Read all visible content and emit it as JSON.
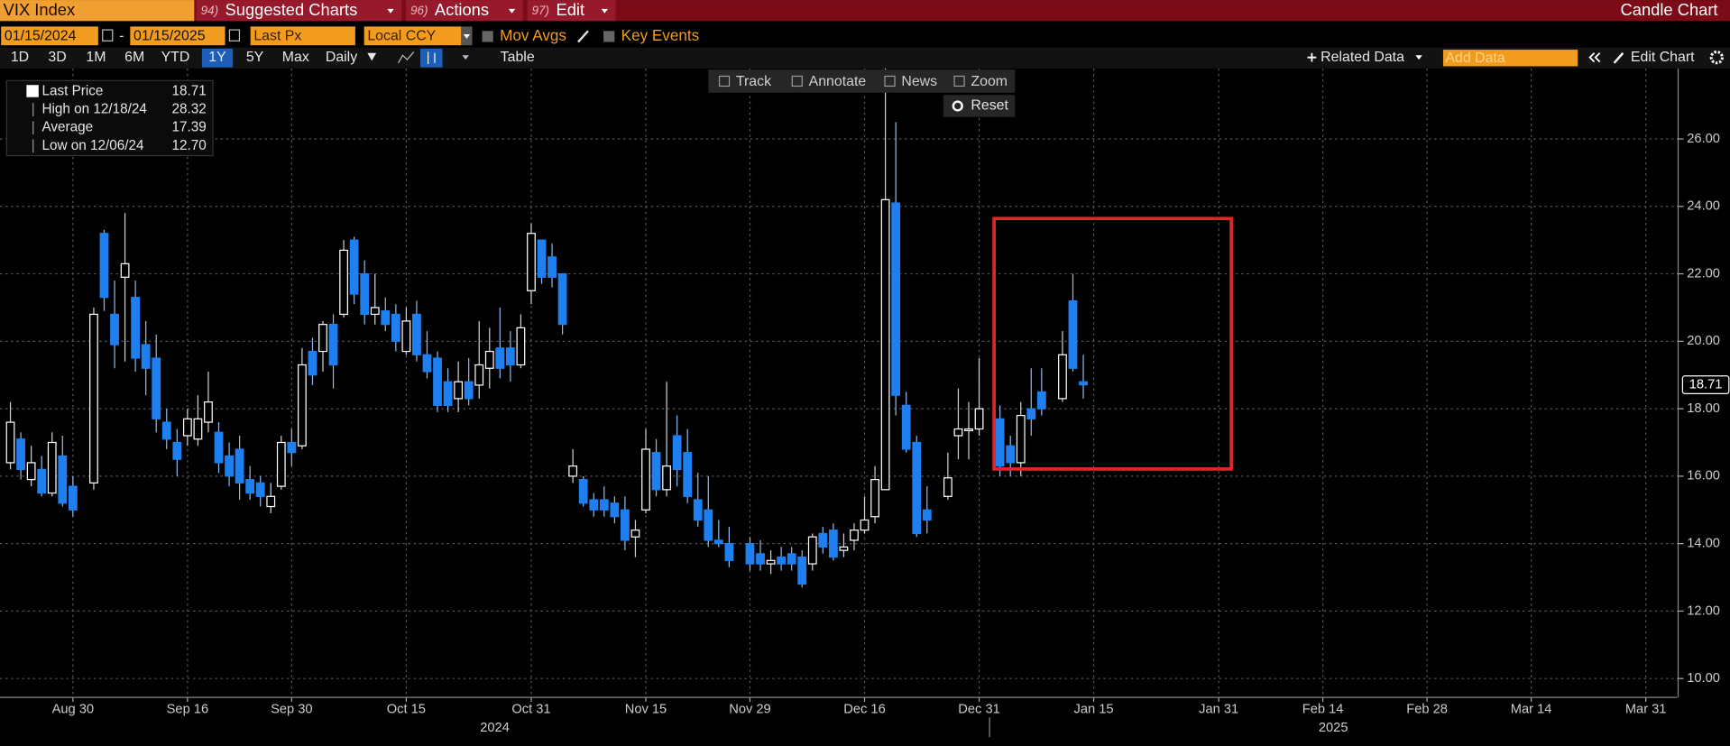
{
  "ui": {
    "security": "VIX Index",
    "menus": [
      {
        "num": "94)",
        "label": "Suggested Charts"
      },
      {
        "num": "96)",
        "label": "Actions"
      },
      {
        "num": "97)",
        "label": "Edit"
      }
    ],
    "chart_kind": "Candle Chart",
    "start_date": "01/15/2024",
    "date_sep": "-",
    "end_date": "01/15/2025",
    "price_field": "Last Px",
    "currency": "Local CCY",
    "mov_avgs": "Mov Avgs",
    "key_events": "Key Events",
    "periods": [
      "1D",
      "3D",
      "1M",
      "6M",
      "YTD",
      "1Y",
      "5Y",
      "Max"
    ],
    "active_period": 5,
    "frequency": "Daily",
    "table": "Table",
    "related_data": "Related Data",
    "add_data": "Add Data",
    "edit_chart": "Edit Chart",
    "tools": [
      "Track",
      "Annotate",
      "News",
      "Zoom"
    ],
    "reset": "Reset"
  },
  "chart_data": {
    "type": "candlestick",
    "legend_stats": [
      {
        "name": "Last Price",
        "value": 18.71
      },
      {
        "name": "High on 12/18/24",
        "value": 28.32
      },
      {
        "name": "Average",
        "value": 17.39
      },
      {
        "name": "Low on 12/06/24",
        "value": 12.7,
        "value_label": "12.70"
      }
    ],
    "up_color": "#ffffff",
    "down_color": "#1e80f0",
    "grid": true,
    "xlim": [
      "2024-08-21",
      "2025-04-03"
    ],
    "xticks": [
      {
        "value": "2024-08-30",
        "label": "Aug 30"
      },
      {
        "value": "2024-09-16",
        "label": "Sep 16"
      },
      {
        "value": "2024-09-30",
        "label": "Sep 30"
      },
      {
        "value": "2024-10-15",
        "label": "Oct 15"
      },
      {
        "value": "2024-10-31",
        "label": "Oct 31"
      },
      {
        "value": "2024-11-15",
        "label": "Nov 15"
      },
      {
        "value": "2024-11-29",
        "label": "Nov 29"
      },
      {
        "value": "2024-12-16",
        "label": "Dec 16"
      },
      {
        "value": "2024-12-31",
        "label": "Dec 31"
      },
      {
        "value": "2025-01-15",
        "label": "Jan 15"
      },
      {
        "value": "2025-01-31",
        "label": "Jan 31"
      },
      {
        "value": "2025-02-14",
        "label": "Feb 14"
      },
      {
        "value": "2025-02-28",
        "label": "Feb 28"
      },
      {
        "value": "2025-03-14",
        "label": "Mar 14"
      },
      {
        "value": "2025-03-31",
        "label": "Mar 31"
      }
    ],
    "x_years": [
      "2024",
      "2025"
    ],
    "ylim": [
      9.44,
      28.09
    ],
    "yticks": [
      {
        "value": 10,
        "label": "10.00"
      },
      {
        "value": 12,
        "label": "12.00"
      },
      {
        "value": 14,
        "label": "14.00"
      },
      {
        "value": 16,
        "label": "16.00"
      },
      {
        "value": 18,
        "label": "18.00"
      },
      {
        "value": 20,
        "label": "20.00"
      },
      {
        "value": 22,
        "label": "22.00"
      },
      {
        "value": 24,
        "label": "24.00"
      },
      {
        "value": 26,
        "label": "26.00"
      }
    ],
    "x": [
      "2024-08-22",
      "2024-08-23",
      "2024-08-26",
      "2024-08-27",
      "2024-08-28",
      "2024-08-29",
      "2024-08-30",
      "2024-09-03",
      "2024-09-04",
      "2024-09-05",
      "2024-09-06",
      "2024-09-09",
      "2024-09-10",
      "2024-09-11",
      "2024-09-12",
      "2024-09-13",
      "2024-09-16",
      "2024-09-17",
      "2024-09-18",
      "2024-09-19",
      "2024-09-20",
      "2024-09-23",
      "2024-09-24",
      "2024-09-25",
      "2024-09-26",
      "2024-09-27",
      "2024-09-30",
      "2024-10-01",
      "2024-10-02",
      "2024-10-03",
      "2024-10-04",
      "2024-10-07",
      "2024-10-08",
      "2024-10-09",
      "2024-10-10",
      "2024-10-11",
      "2024-10-14",
      "2024-10-15",
      "2024-10-16",
      "2024-10-17",
      "2024-10-18",
      "2024-10-21",
      "2024-10-22",
      "2024-10-23",
      "2024-10-24",
      "2024-10-25",
      "2024-10-28",
      "2024-10-29",
      "2024-10-30",
      "2024-10-31",
      "2024-11-01",
      "2024-11-04",
      "2024-11-05",
      "2024-11-06",
      "2024-11-07",
      "2024-11-08",
      "2024-11-11",
      "2024-11-12",
      "2024-11-13",
      "2024-11-14",
      "2024-11-15",
      "2024-11-18",
      "2024-11-19",
      "2024-11-20",
      "2024-11-21",
      "2024-11-22",
      "2024-11-25",
      "2024-11-26",
      "2024-11-27",
      "2024-11-29",
      "2024-12-02",
      "2024-12-03",
      "2024-12-04",
      "2024-12-05",
      "2024-12-06",
      "2024-12-09",
      "2024-12-10",
      "2024-12-11",
      "2024-12-12",
      "2024-12-13",
      "2024-12-16",
      "2024-12-17",
      "2024-12-18",
      "2024-12-19",
      "2024-12-20",
      "2024-12-23",
      "2024-12-24",
      "2024-12-26",
      "2024-12-27",
      "2024-12-30",
      "2024-12-31",
      "2025-01-02",
      "2025-01-03",
      "2025-01-06",
      "2025-01-07",
      "2025-01-08",
      "2025-01-10",
      "2025-01-13",
      "2025-01-14"
    ],
    "open": [
      16.4,
      17.1,
      15.9,
      16.2,
      15.5,
      16.6,
      15.7,
      15.8,
      23.2,
      20.8,
      21.9,
      21.3,
      19.9,
      19.5,
      17.6,
      17.0,
      17.2,
      17.1,
      17.6,
      17.3,
      16.6,
      16.8,
      15.9,
      15.8,
      15.1,
      15.7,
      17.0,
      16.9,
      19.7,
      19.7,
      20.5,
      20.8,
      23.0,
      22.0,
      20.8,
      20.9,
      20.8,
      19.7,
      20.8,
      19.6,
      19.5,
      18.8,
      18.3,
      18.8,
      18.7,
      19.2,
      19.8,
      19.8,
      19.3,
      21.5,
      23.0,
      22.5,
      22.0,
      16.0,
      15.9,
      15.3,
      15.3,
      15.2,
      15.0,
      14.2,
      15.0,
      16.7,
      15.6,
      17.2,
      16.7,
      15.3,
      15.0,
      14.1,
      14.0,
      14.0,
      13.7,
      13.4,
      13.6,
      13.7,
      13.6,
      13.4,
      14.3,
      14.4,
      13.8,
      14.1,
      14.4,
      14.8,
      15.6,
      24.1,
      18.1,
      17.0,
      15.0,
      15.4,
      17.2,
      17.35,
      17.4,
      17.7,
      16.9,
      16.4,
      18.0,
      18.5,
      18.3,
      21.2,
      18.8
    ],
    "high": [
      18.2,
      17.3,
      16.9,
      16.6,
      17.3,
      17.2,
      16.0,
      21.0,
      23.3,
      21.8,
      23.8,
      21.8,
      20.6,
      20.2,
      18.0,
      17.4,
      18.0,
      18.4,
      19.1,
      17.6,
      17.0,
      17.2,
      16.3,
      16.0,
      15.8,
      17.2,
      17.4,
      19.8,
      20.1,
      20.6,
      20.8,
      23.0,
      23.1,
      22.4,
      22.0,
      21.3,
      21.1,
      21.0,
      21.2,
      20.3,
      19.7,
      19.2,
      19.4,
      19.5,
      20.6,
      20.4,
      21.0,
      20.3,
      20.8,
      23.5,
      23.0,
      22.9,
      22.0,
      16.8,
      16.0,
      15.5,
      15.7,
      15.4,
      15.4,
      14.7,
      17.4,
      17.1,
      18.8,
      17.8,
      17.4,
      16.1,
      16.0,
      14.7,
      14.5,
      14.2,
      14.1,
      13.8,
      13.9,
      13.9,
      13.8,
      14.3,
      14.5,
      14.6,
      14.3,
      14.6,
      15.4,
      16.3,
      28.32,
      26.5,
      18.5,
      17.2,
      15.7,
      16.7,
      18.6,
      18.2,
      19.5,
      18.1,
      17.2,
      18.2,
      19.2,
      19.2,
      20.3,
      22.0,
      19.6
    ],
    "low": [
      16.2,
      15.9,
      15.7,
      15.4,
      15.4,
      15.1,
      14.8,
      15.6,
      20.9,
      19.2,
      19.4,
      19.1,
      18.4,
      17.3,
      16.8,
      16.0,
      16.9,
      16.9,
      17.3,
      16.1,
      15.7,
      15.3,
      15.3,
      15.1,
      14.9,
      15.6,
      16.3,
      16.8,
      18.7,
      19.1,
      18.6,
      20.7,
      21.1,
      20.5,
      20.5,
      20.3,
      19.7,
      19.6,
      19.4,
      18.9,
      17.9,
      17.9,
      17.9,
      18.1,
      18.3,
      18.6,
      18.9,
      18.8,
      19.2,
      21.1,
      21.7,
      21.6,
      20.2,
      15.8,
      15.1,
      14.8,
      14.8,
      14.6,
      13.8,
      13.6,
      14.9,
      15.4,
      15.4,
      15.7,
      15.2,
      14.5,
      13.9,
      13.9,
      13.3,
      13.2,
      13.2,
      13.1,
      13.2,
      13.2,
      12.7,
      13.2,
      13.7,
      13.5,
      13.6,
      13.8,
      14.3,
      14.6,
      15.6,
      17.8,
      16.7,
      14.2,
      14.3,
      15.3,
      16.5,
      16.5,
      17.2,
      16.0,
      16.0,
      16.0,
      17.2,
      17.8,
      18.2,
      19.1,
      18.3
    ],
    "close": [
      17.6,
      16.2,
      16.4,
      15.5,
      17.0,
      15.2,
      15.0,
      20.8,
      21.3,
      19.9,
      22.3,
      19.5,
      19.2,
      17.7,
      17.1,
      16.5,
      17.7,
      17.7,
      18.2,
      16.4,
      16.0,
      15.8,
      15.5,
      15.4,
      15.4,
      17.0,
      16.7,
      19.3,
      19.0,
      20.5,
      19.3,
      22.7,
      21.4,
      20.8,
      21.0,
      20.5,
      20.0,
      20.6,
      19.6,
      19.1,
      18.1,
      18.1,
      18.8,
      18.3,
      19.3,
      19.7,
      19.2,
      19.3,
      20.4,
      23.2,
      21.9,
      21.9,
      20.5,
      16.3,
      15.2,
      15.0,
      15.0,
      14.8,
      14.1,
      14.4,
      16.8,
      15.6,
      16.3,
      16.2,
      15.4,
      14.7,
      14.1,
      14.0,
      13.5,
      13.4,
      13.4,
      13.5,
      13.4,
      13.4,
      12.8,
      14.2,
      13.9,
      13.6,
      13.9,
      14.4,
      14.7,
      15.9,
      24.2,
      18.4,
      16.8,
      14.3,
      14.7,
      15.95,
      17.4,
      17.4,
      18.0,
      16.3,
      16.4,
      17.8,
      17.7,
      18.0,
      19.6,
      19.2,
      18.71
    ]
  }
}
